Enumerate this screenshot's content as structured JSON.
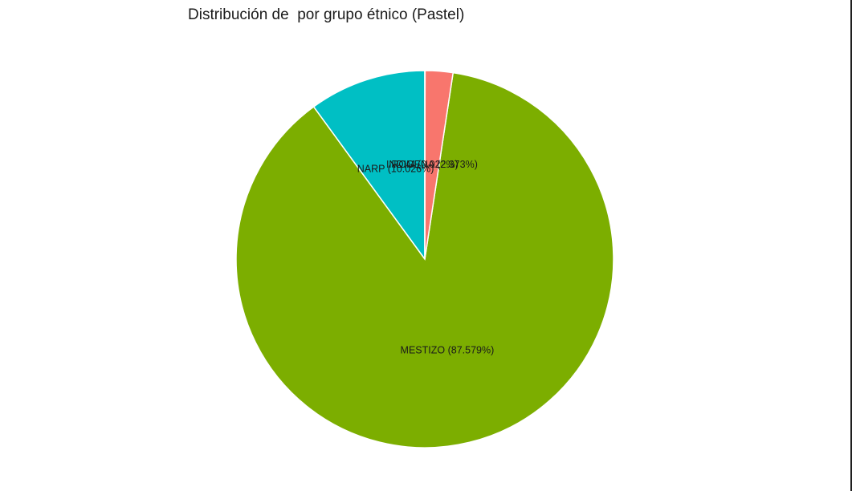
{
  "chart_data": {
    "type": "pie",
    "title": "Distribución de  por grupo étnico (Pastel)",
    "start": "12 o'clock",
    "direction": "counterclockwise",
    "slices": [
      {
        "label": "NARP",
        "value": 10.026,
        "display": "NARP (10.026%)",
        "color": "#00BFC4"
      },
      {
        "label": "MESTIZO",
        "value": 87.579,
        "display": "MESTIZO (87.579%)",
        "color": "#7CAE00"
      },
      {
        "label": "INDIGENA",
        "value": 2.373,
        "display": "INDIGENA (2.373%)",
        "color": "#F8766D"
      },
      {
        "label": "ROM",
        "value": 0.022,
        "display": "ROM (0.022%)",
        "color": "#C77CFF"
      }
    ]
  }
}
